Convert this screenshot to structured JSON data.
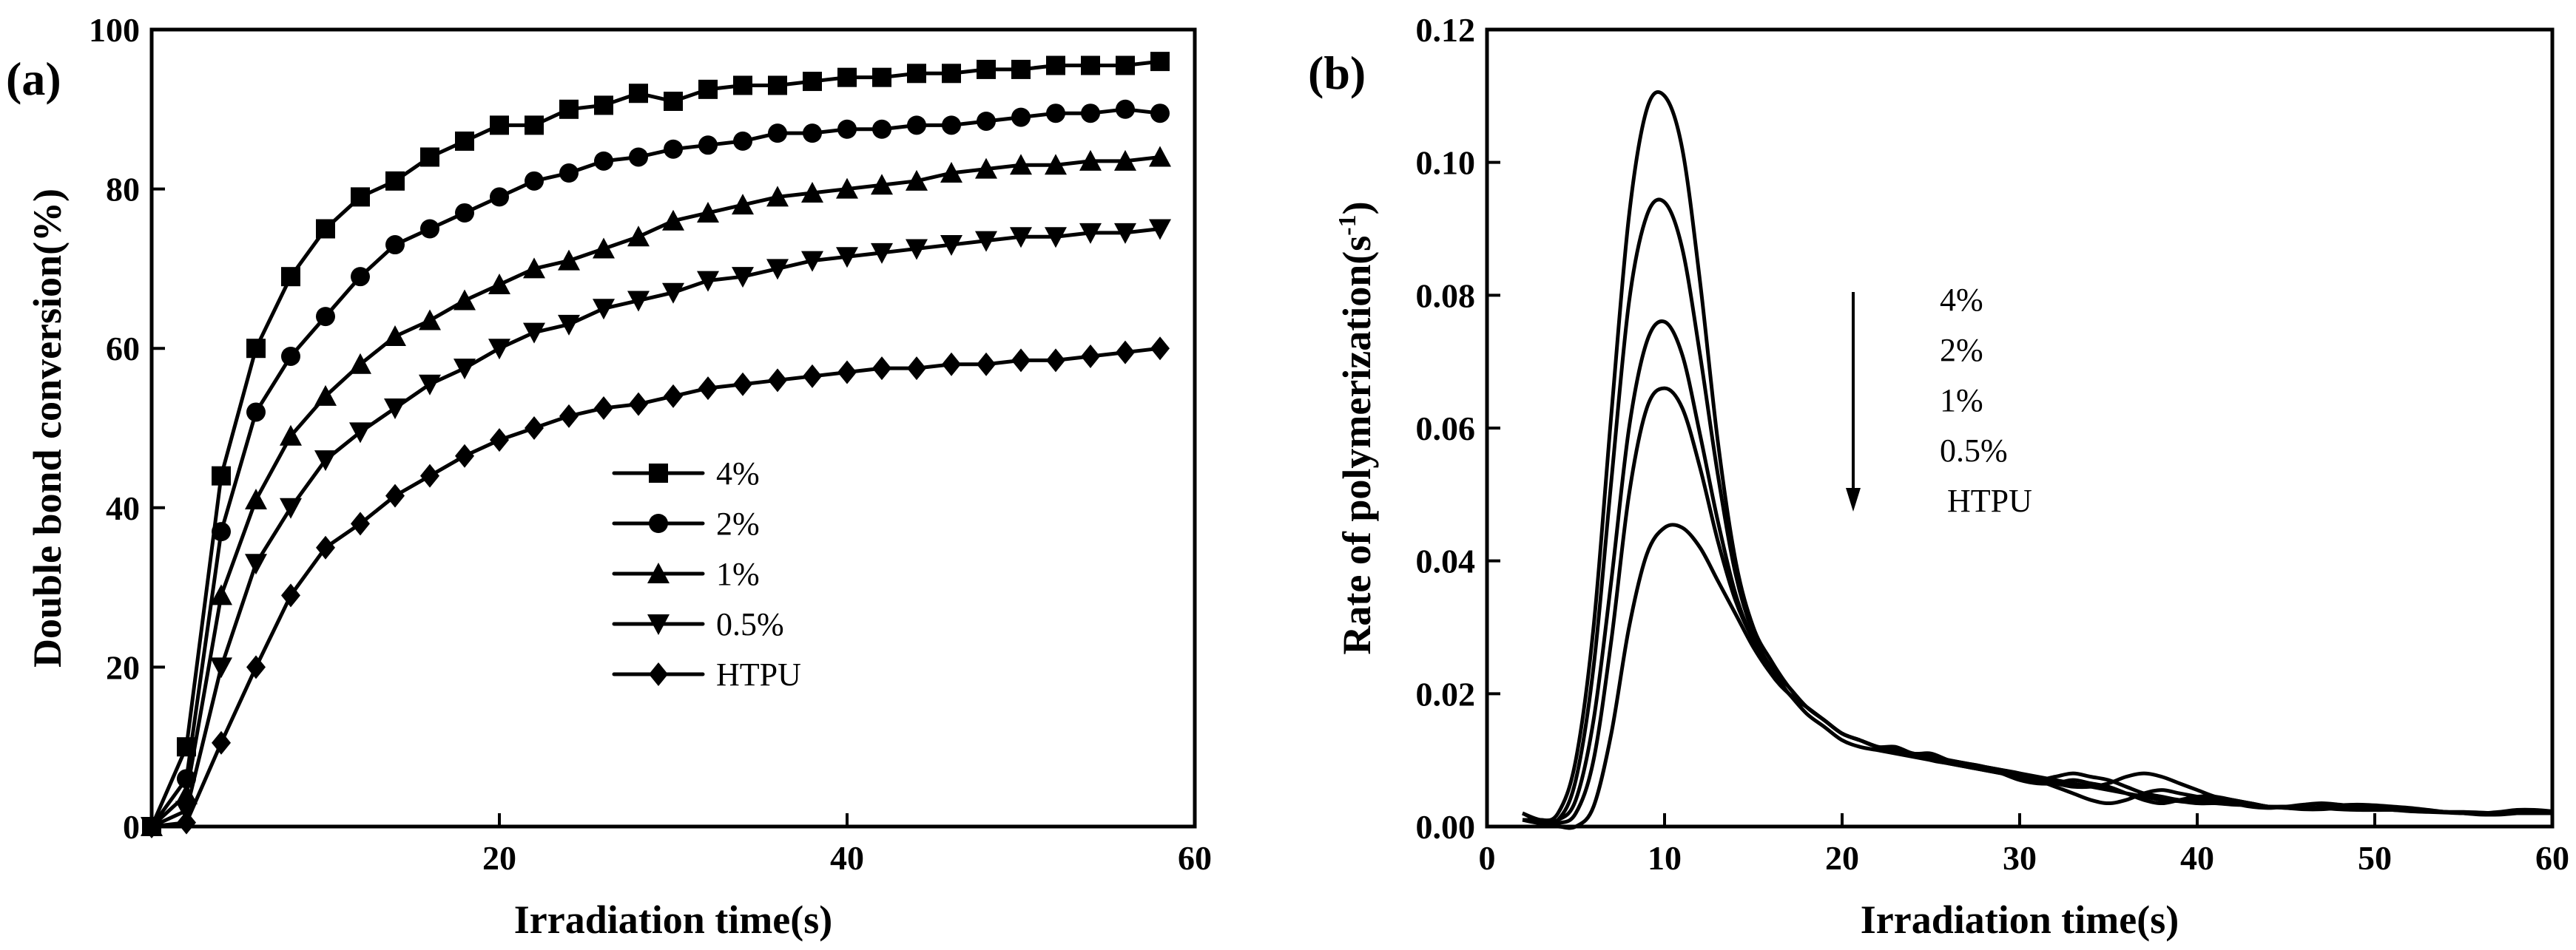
{
  "chart_data": [
    {
      "type": "line",
      "panel_label": "(a)",
      "title": "",
      "xlabel": "Irradiation time(s)",
      "ylabel": "Double bond conversion(%)",
      "xlim": [
        0,
        60
      ],
      "ylim": [
        0,
        100
      ],
      "xticks": [
        20,
        40,
        60
      ],
      "yticks": [
        0,
        20,
        40,
        60,
        80,
        100
      ],
      "grid": false,
      "legend_position": "center-right",
      "x": [
        0,
        2,
        4,
        6,
        8,
        10,
        12,
        14,
        16,
        18,
        20,
        22,
        24,
        26,
        28,
        30,
        32,
        34,
        36,
        38,
        40,
        42,
        44,
        46,
        48,
        50,
        52,
        54,
        56,
        58
      ],
      "series": [
        {
          "name": "4%",
          "marker": "square",
          "values": [
            0,
            10,
            44,
            60,
            69,
            75,
            79,
            81,
            84,
            86,
            88,
            88,
            90,
            90.5,
            92,
            91,
            92.5,
            93,
            93,
            93.5,
            94,
            94,
            94.5,
            94.5,
            95,
            95,
            95.5,
            95.5,
            95.5,
            96
          ]
        },
        {
          "name": "2%",
          "marker": "circle",
          "values": [
            0,
            6,
            37,
            52,
            59,
            64,
            69,
            73,
            75,
            77,
            79,
            81,
            82,
            83.5,
            84,
            85,
            85.5,
            86,
            87,
            87,
            87.5,
            87.5,
            88,
            88,
            88.5,
            89,
            89.5,
            89.5,
            90,
            89.5
          ]
        },
        {
          "name": "1%",
          "marker": "triangle-up",
          "values": [
            0,
            4,
            29,
            41,
            49,
            54,
            58,
            61.5,
            63.5,
            66,
            68,
            70,
            71,
            72.5,
            74,
            76,
            77,
            78,
            79,
            79.5,
            80,
            80.5,
            81,
            82,
            82.5,
            83,
            83,
            83.5,
            83.5,
            84
          ]
        },
        {
          "name": "0.5%",
          "marker": "triangle-down",
          "values": [
            0,
            2,
            20,
            33,
            40,
            46,
            49.5,
            52.5,
            55.5,
            57.5,
            60,
            62,
            63,
            65,
            66,
            67,
            68.5,
            69,
            70,
            71,
            71.5,
            72,
            72.5,
            73,
            73.5,
            74,
            74,
            74.5,
            74.5,
            75
          ]
        },
        {
          "name": "HTPU",
          "marker": "diamond",
          "values": [
            0,
            0.5,
            10.5,
            20,
            29,
            35,
            38,
            41.5,
            44,
            46.5,
            48.5,
            50,
            51.5,
            52.5,
            53,
            54,
            55,
            55.5,
            56,
            56.5,
            57,
            57.5,
            57.5,
            58,
            58,
            58.5,
            58.5,
            59,
            59.5,
            60
          ]
        }
      ]
    },
    {
      "type": "line",
      "panel_label": "(b)",
      "title": "",
      "xlabel": "Irradiation time(s)",
      "ylabel_main": "Rate of polymerization(s",
      "ylabel_exponent": "-1",
      "ylabel_tail": ")",
      "xlim": [
        0,
        60
      ],
      "ylim": [
        0,
        0.12
      ],
      "xticks": [
        0,
        10,
        20,
        30,
        40,
        50,
        60
      ],
      "yticks": [
        0.0,
        0.02,
        0.04,
        0.06,
        0.08,
        0.1,
        0.12
      ],
      "grid": false,
      "legend_position": "top-center",
      "annotation": "arrow pointing down beside legend entries, ordered from highest to lowest peak",
      "x": [
        2,
        3,
        4,
        5,
        6,
        7,
        8,
        9,
        10,
        11,
        12,
        13,
        14,
        15,
        16,
        17,
        18,
        19,
        20,
        21,
        22,
        23,
        24,
        25,
        26,
        27,
        28,
        29,
        30,
        31,
        32,
        33,
        34,
        35,
        36,
        37,
        38,
        39,
        40,
        41,
        42,
        43,
        44,
        45,
        46,
        47,
        48,
        49,
        50,
        51,
        52,
        53,
        54,
        55,
        56,
        57,
        58,
        59,
        60
      ],
      "series": [
        {
          "name": "4%",
          "values": [
            0.002,
            0.001,
            0.002,
            0.01,
            0.03,
            0.062,
            0.092,
            0.108,
            0.11,
            0.102,
            0.082,
            0.058,
            0.04,
            0.03,
            0.025,
            0.021,
            0.018,
            0.016,
            0.014,
            0.013,
            0.012,
            0.012,
            0.011,
            0.011,
            0.01,
            0.0095,
            0.009,
            0.0085,
            0.008,
            0.0075,
            0.007,
            0.0065,
            0.006,
            0.0055,
            0.005,
            0.0045,
            0.004,
            0.0038,
            0.0035,
            0.0035,
            0.0033,
            0.0032,
            0.003,
            0.003,
            0.0029,
            0.0028,
            0.0027,
            0.0026,
            0.0025,
            0.0025,
            0.0024,
            0.0023,
            0.0022,
            0.0022,
            0.0021,
            0.002,
            0.002,
            0.002,
            0.002
          ]
        },
        {
          "name": "2%",
          "values": [
            0.002,
            0.001,
            0.001,
            0.007,
            0.024,
            0.052,
            0.079,
            0.092,
            0.094,
            0.087,
            0.071,
            0.053,
            0.038,
            0.029,
            0.024,
            0.021,
            0.018,
            0.016,
            0.014,
            0.013,
            0.012,
            0.0115,
            0.011,
            0.0105,
            0.01,
            0.0095,
            0.009,
            0.0085,
            0.008,
            0.007,
            0.006,
            0.005,
            0.004,
            0.0035,
            0.004,
            0.005,
            0.0055,
            0.005,
            0.0045,
            0.004,
            0.0035,
            0.003,
            0.0028,
            0.003,
            0.0033,
            0.0035,
            0.0033,
            0.003,
            0.0027,
            0.0025,
            0.0023,
            0.0022,
            0.0021,
            0.002,
            0.002,
            0.0022,
            0.0025,
            0.0025,
            0.0023
          ]
        },
        {
          "name": "1%",
          "values": [
            0.001,
            0.001,
            0.001,
            0.004,
            0.016,
            0.037,
            0.06,
            0.073,
            0.076,
            0.071,
            0.059,
            0.046,
            0.035,
            0.028,
            0.024,
            0.02,
            0.018,
            0.016,
            0.014,
            0.013,
            0.012,
            0.0115,
            0.011,
            0.0105,
            0.01,
            0.0095,
            0.009,
            0.008,
            0.007,
            0.0065,
            0.0065,
            0.007,
            0.0065,
            0.006,
            0.005,
            0.004,
            0.0035,
            0.004,
            0.0045,
            0.0045,
            0.004,
            0.0035,
            0.003,
            0.0028,
            0.0028,
            0.003,
            0.0032,
            0.0033,
            0.0032,
            0.003,
            0.0028,
            0.0025,
            0.0022,
            0.002,
            0.0018,
            0.0018,
            0.002,
            0.0022,
            0.002
          ]
        },
        {
          "name": "0.5%",
          "values": [
            0.001,
            0.0005,
            0.0005,
            0.002,
            0.01,
            0.028,
            0.05,
            0.063,
            0.066,
            0.063,
            0.054,
            0.043,
            0.034,
            0.028,
            0.023,
            0.02,
            0.018,
            0.016,
            0.014,
            0.013,
            0.012,
            0.0115,
            0.011,
            0.01,
            0.0095,
            0.009,
            0.0085,
            0.008,
            0.0075,
            0.007,
            0.0075,
            0.008,
            0.0075,
            0.007,
            0.006,
            0.005,
            0.0045,
            0.004,
            0.004,
            0.004,
            0.0038,
            0.0035,
            0.003,
            0.0028,
            0.0026,
            0.0026,
            0.0028,
            0.003,
            0.003,
            0.0028,
            0.0025,
            0.0023,
            0.0022,
            0.002,
            0.002,
            0.002,
            0.002,
            0.0022,
            0.002
          ]
        },
        {
          "name": "HTPU",
          "values": [
            0.0,
            0.0,
            0.0,
            0.0,
            0.003,
            0.014,
            0.03,
            0.041,
            0.045,
            0.045,
            0.042,
            0.037,
            0.032,
            0.027,
            0.023,
            0.02,
            0.017,
            0.015,
            0.013,
            0.012,
            0.0115,
            0.011,
            0.0105,
            0.01,
            0.0095,
            0.009,
            0.0085,
            0.008,
            0.0075,
            0.007,
            0.0065,
            0.006,
            0.006,
            0.0065,
            0.0075,
            0.008,
            0.0075,
            0.0065,
            0.0055,
            0.0045,
            0.004,
            0.0035,
            0.003,
            0.003,
            0.003,
            0.0028,
            0.0026,
            0.0025,
            0.0025,
            0.0025,
            0.0024,
            0.0023,
            0.0022,
            0.002,
            0.002,
            0.002,
            0.002,
            0.002,
            0.002
          ]
        }
      ]
    }
  ]
}
